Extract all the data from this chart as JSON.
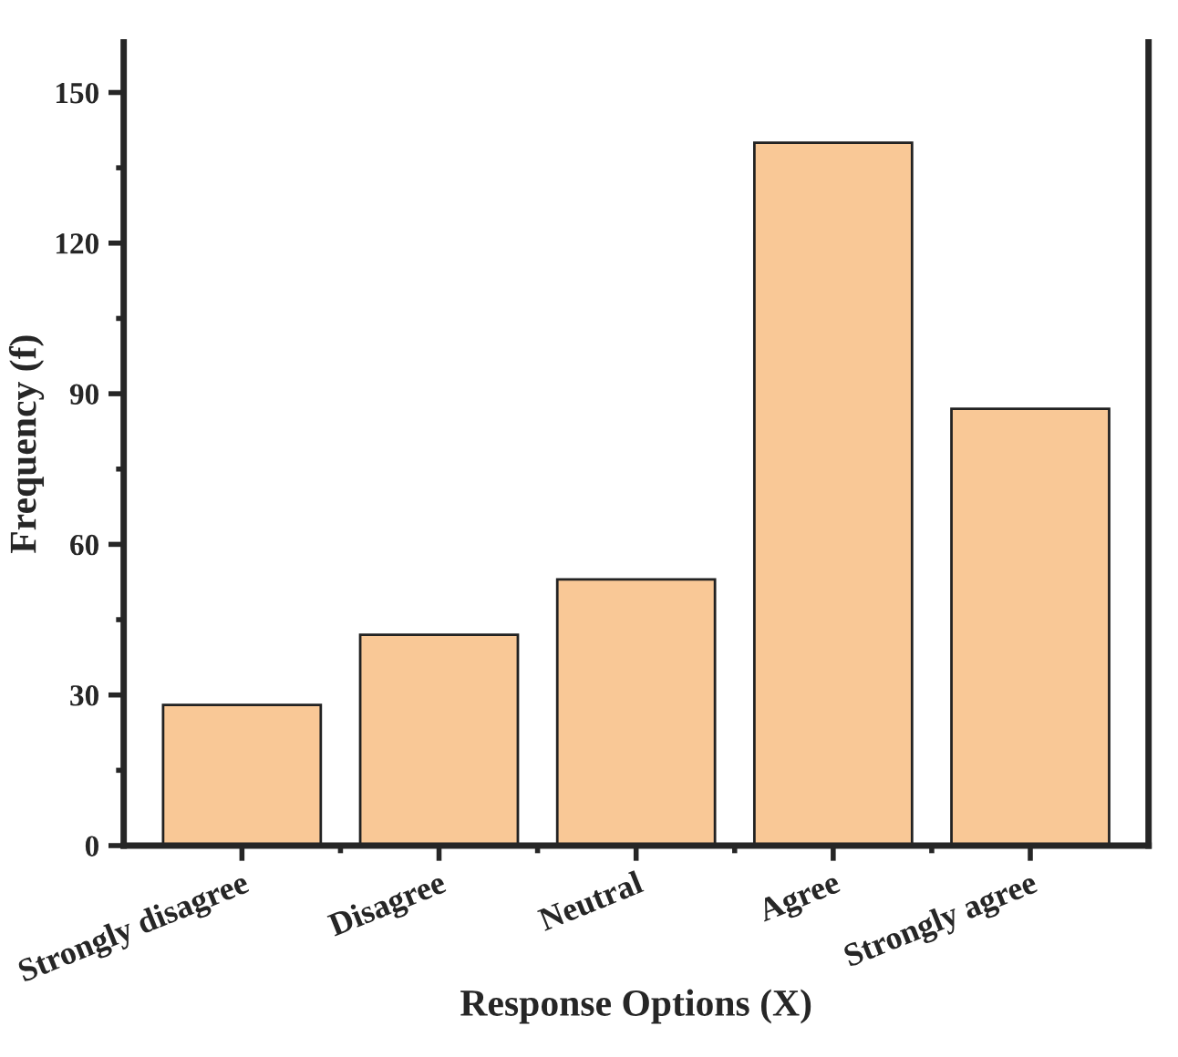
{
  "chart_data": {
    "type": "bar",
    "xlabel": "Response Options (X)",
    "ylabel": "Frequency (f)",
    "categories": [
      "Strongly disagree",
      "Disagree",
      "Neutral",
      "Agree",
      "Strongly agree"
    ],
    "values": [
      28,
      42,
      53,
      140,
      87
    ],
    "color": "#f9c896",
    "ylim": [
      0,
      160
    ],
    "yticks": [
      0,
      30,
      60,
      90,
      120,
      150
    ],
    "grid": false,
    "legend": false
  }
}
